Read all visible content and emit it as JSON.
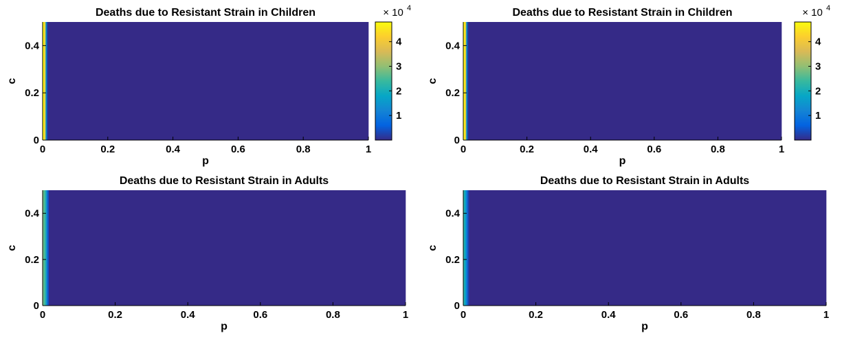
{
  "chart_data": [
    {
      "type": "heatmap",
      "title": "Deaths due to Resistant Strain in Children",
      "xlabel": "p",
      "ylabel": "c",
      "xlim": [
        0,
        1
      ],
      "ylim": [
        0,
        0.5
      ],
      "xticks": [
        "0",
        "0.2",
        "0.4",
        "0.6",
        "0.8",
        "1"
      ],
      "yticks": [
        "0",
        "0.2",
        "0.4"
      ],
      "grid": false,
      "colormap": "parula",
      "colorbar": {
        "range": [
          0,
          48000
        ],
        "ticks": [
          "1",
          "2",
          "3",
          "4"
        ],
        "tick_values": [
          10000,
          20000,
          30000,
          40000
        ],
        "multiplier": "× 10",
        "exponent": "4"
      },
      "profile": {
        "note_units": "value varies along p only; constant in c",
        "p": [
          0.0,
          0.005,
          0.009,
          0.012,
          0.016,
          1.0
        ],
        "value": [
          48000,
          48000,
          30000,
          6000,
          0,
          0
        ]
      }
    },
    {
      "type": "heatmap",
      "title": "Deaths due to Resistant Strain in Children",
      "xlabel": "p",
      "ylabel": "c",
      "xlim": [
        0,
        1
      ],
      "ylim": [
        0,
        0.5
      ],
      "xticks": [
        "0",
        "0.2",
        "0.4",
        "0.6",
        "0.8",
        "1"
      ],
      "yticks": [
        "0",
        "0.2",
        "0.4"
      ],
      "grid": false,
      "colormap": "parula",
      "colorbar": {
        "range": [
          0,
          48000
        ],
        "ticks": [
          "1",
          "2",
          "3",
          "4"
        ],
        "tick_values": [
          10000,
          20000,
          30000,
          40000
        ],
        "multiplier": "× 10",
        "exponent": "4"
      },
      "profile": {
        "note_units": "value varies along p only; constant in c",
        "p": [
          0.0,
          0.005,
          0.009,
          0.012,
          0.016,
          1.0
        ],
        "value": [
          48000,
          48000,
          30000,
          6000,
          0,
          0
        ]
      }
    },
    {
      "type": "heatmap",
      "title": "Deaths due to Resistant Strain in Adults",
      "xlabel": "p",
      "ylabel": "c",
      "xlim": [
        0,
        1
      ],
      "ylim": [
        0,
        0.5
      ],
      "xticks": [
        "0",
        "0.2",
        "0.4",
        "0.6",
        "0.8",
        "1"
      ],
      "yticks": [
        "0",
        "0.2",
        "0.4"
      ],
      "grid": false,
      "colormap": "parula",
      "profile": {
        "note_units": "value varies along p only; constant in c; relative to colour scale",
        "p": [
          0.0,
          0.005,
          0.009,
          0.013,
          0.017,
          1.0
        ],
        "value": [
          0.58,
          0.55,
          0.4,
          0.18,
          0,
          0
        ]
      }
    },
    {
      "type": "heatmap",
      "title": "Deaths due to Resistant Strain in Adults",
      "xlabel": "p",
      "ylabel": "c",
      "xlim": [
        0,
        1
      ],
      "ylim": [
        0,
        0.5
      ],
      "xticks": [
        "0",
        "0.2",
        "0.4",
        "0.6",
        "0.8",
        "1"
      ],
      "yticks": [
        "0",
        "0.2",
        "0.4"
      ],
      "grid": false,
      "colormap": "parula",
      "profile": {
        "note_units": "value varies along p only; constant in c; relative to colour scale",
        "p": [
          0.0,
          0.004,
          0.008,
          0.012,
          0.016,
          1.0
        ],
        "value": [
          0.5,
          0.42,
          0.28,
          0.12,
          0,
          0
        ]
      }
    }
  ],
  "colors": {
    "parula": [
      "#352a87",
      "#0363e1",
      "#1485d4",
      "#06a7c6",
      "#38b99e",
      "#92bf73",
      "#d9ba56",
      "#fcce2e",
      "#f9fb0e"
    ],
    "background_dark": "#2b1f7e"
  }
}
